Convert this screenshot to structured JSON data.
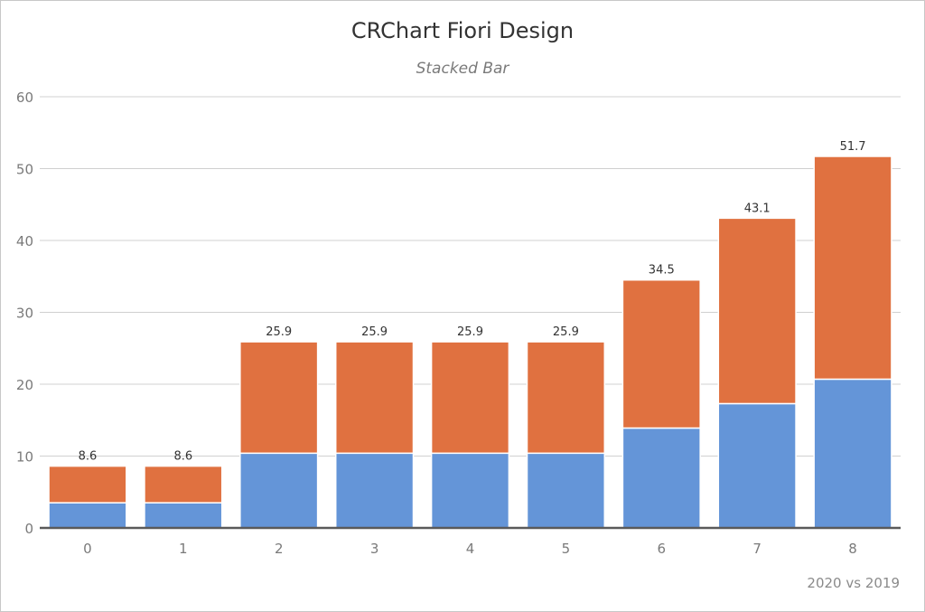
{
  "chart_data": {
    "type": "bar",
    "stacked": true,
    "title": "CRChart Fiori Design",
    "subtitle": "Stacked Bar",
    "footer": "2020 vs 2019",
    "xlabel": "",
    "ylabel": "",
    "categories": [
      "0",
      "1",
      "2",
      "3",
      "4",
      "5",
      "6",
      "7",
      "8"
    ],
    "series": [
      {
        "values": [
          3.5,
          3.5,
          10.4,
          10.4,
          10.4,
          10.4,
          13.9,
          17.3,
          20.7
        ],
        "color": "#6495d8"
      },
      {
        "values": [
          5.1,
          5.1,
          15.5,
          15.5,
          15.5,
          15.5,
          20.6,
          25.8,
          31.0
        ],
        "color": "#e07140"
      }
    ],
    "totals": [
      "8.6",
      "8.6",
      "25.9",
      "25.9",
      "25.9",
      "25.9",
      "34.5",
      "43.1",
      "51.7"
    ],
    "ylim": [
      0,
      60
    ],
    "yticks": [
      0,
      10,
      20,
      30,
      40,
      50,
      60
    ],
    "grid": true,
    "legend": "none"
  }
}
